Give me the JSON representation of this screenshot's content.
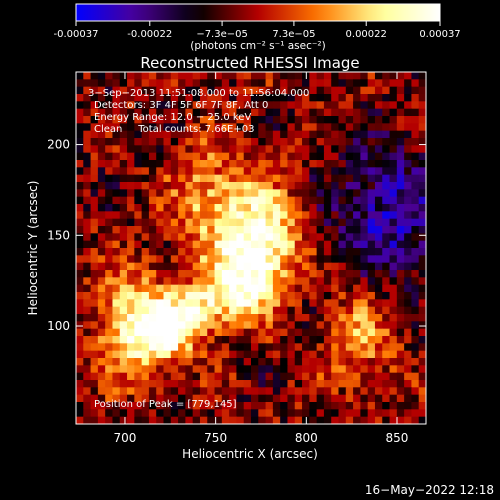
{
  "chart_data": {
    "type": "heatmap",
    "title": "Reconstructed RHESSI Image",
    "xlabel": "Heliocentric X (arcsec)",
    "ylabel": "Heliocentric Y (arcsec)",
    "xlim": [
      673,
      866
    ],
    "ylim": [
      46,
      240
    ],
    "x_ticks": [
      700,
      750,
      800,
      850
    ],
    "y_ticks": [
      100,
      150,
      200
    ],
    "x_tick_labels": [
      "700",
      "750",
      "800",
      "850"
    ],
    "y_tick_labels": [
      "100",
      "150",
      "200"
    ],
    "grid": false,
    "colorbar": {
      "range": [
        -0.00037,
        0.00037
      ],
      "tick_values": [
        -0.00037,
        -0.00022,
        -7.3e-05,
        7.3e-05,
        0.00022,
        0.00037
      ],
      "tick_labels": [
        "-0.00037",
        "-0.00022",
        "−7.3e−05",
        "7.3e−05",
        "0.00022",
        "0.00037"
      ],
      "unit_label": "(photons cm⁻² s⁻¹ asec⁻²)",
      "colors": [
        "#0000ff",
        "#4b0096",
        "#000000",
        "#b40000",
        "#ff7800",
        "#ffff96",
        "#ffffff"
      ]
    },
    "annotations": {
      "time_range": "3−Sep−2013 11:51:08.000 to 11:56:04.000",
      "detectors": "Detectors: 3F 4F 5F 6F 7F 8F, Att 0",
      "energy": "Energy Range: 12.0 − 25.0 keV",
      "clean": "Clean     Total counts: 7.66E+03",
      "peak": "Position of Peak = [779,145]"
    },
    "peak": {
      "x": 779,
      "y": 145
    },
    "image_grid": {
      "nx": 48,
      "ny": 48,
      "pixel_arcsec": 4.0
    },
    "emission_regions": [
      {
        "label": "bright ridge",
        "x": 775,
        "y": 150,
        "relative_intensity": 1.0
      },
      {
        "label": "lower-left source",
        "x": 705,
        "y": 100,
        "relative_intensity": 0.9
      },
      {
        "label": "mid-left knot",
        "x": 745,
        "y": 170,
        "relative_intensity": 0.6
      },
      {
        "label": "lower-right knot",
        "x": 830,
        "y": 95,
        "relative_intensity": 0.5
      },
      {
        "label": "blue region",
        "x": 845,
        "y": 160,
        "relative_intensity": -0.6
      }
    ]
  },
  "footer": {
    "timestamp": "16−May−2022 12:18"
  }
}
